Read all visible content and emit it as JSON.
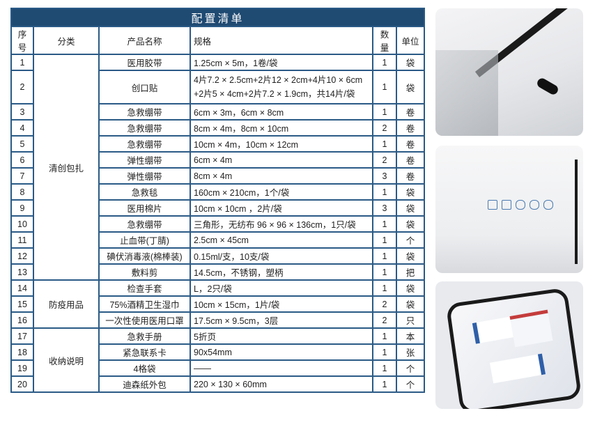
{
  "title": "配置清单",
  "headers": [
    "序号",
    "分类",
    "产品名称",
    "规格",
    "数量",
    "单位"
  ],
  "categories": [
    {
      "label": "清创包扎",
      "rows": 13
    },
    {
      "label": "防疫用品",
      "rows": 3
    },
    {
      "label": "收纳说明",
      "rows": 4
    }
  ],
  "rows": [
    {
      "no": "1",
      "name": "医用胶带",
      "spec": "1.25cm × 5m，1卷/袋",
      "qty": "1",
      "unit": "袋"
    },
    {
      "no": "2",
      "name": "创口贴",
      "spec": "4片7.2 × 2.5cm+2片12 × 2cm+4片10 × 6cm +2片5 × 4cm+2片7.2 × 1.9cm，共14片/袋",
      "qty": "1",
      "unit": "袋"
    },
    {
      "no": "3",
      "name": "急救绷带",
      "spec": "6cm × 3m，6cm × 8cm",
      "qty": "1",
      "unit": "卷"
    },
    {
      "no": "4",
      "name": "急救绷带",
      "spec": "8cm × 4m，8cm × 10cm",
      "qty": "2",
      "unit": "卷"
    },
    {
      "no": "5",
      "name": "急救绷带",
      "spec": "10cm × 4m，10cm × 12cm",
      "qty": "1",
      "unit": "卷"
    },
    {
      "no": "6",
      "name": "弹性绷带",
      "spec": "6cm × 4m",
      "qty": "2",
      "unit": "卷"
    },
    {
      "no": "7",
      "name": "弹性绷带",
      "spec": "8cm × 4m",
      "qty": "3",
      "unit": "卷"
    },
    {
      "no": "8",
      "name": "急救毯",
      "spec": "160cm × 210cm，1个/袋",
      "qty": "1",
      "unit": "袋"
    },
    {
      "no": "9",
      "name": "医用棉片",
      "spec": "10cm × 10cm ，2片/袋",
      "qty": "3",
      "unit": "袋"
    },
    {
      "no": "10",
      "name": "急救绷带",
      "spec": "三角形，无纺布  96 × 96 × 136cm，1只/袋",
      "qty": "1",
      "unit": "袋"
    },
    {
      "no": "11",
      "name": "止血带(丁腈)",
      "spec": "2.5cm × 45cm",
      "qty": "1",
      "unit": "个"
    },
    {
      "no": "12",
      "name": "碘伏消毒液(棉棒装)",
      "spec": "0.15ml/支，10支/袋",
      "qty": "1",
      "unit": "袋"
    },
    {
      "no": "13",
      "name": "敷料剪",
      "spec": "14.5cm，不锈钢，塑柄",
      "qty": "1",
      "unit": "把"
    },
    {
      "no": "14",
      "name": "检查手套",
      "spec": "L，2只/袋",
      "qty": "1",
      "unit": "袋"
    },
    {
      "no": "15",
      "name": "75%酒精卫生湿巾",
      "spec": "10cm × 15cm，1片/袋",
      "qty": "2",
      "unit": "袋"
    },
    {
      "no": "16",
      "name": "一次性使用医用口罩",
      "spec": "17.5cm × 9.5cm，3层",
      "qty": "2",
      "unit": "只"
    },
    {
      "no": "17",
      "name": "急救手册",
      "spec": "5折页",
      "qty": "1",
      "unit": "本"
    },
    {
      "no": "18",
      "name": "紧急联系卡",
      "spec": "90x54mm",
      "qty": "1",
      "unit": "张"
    },
    {
      "no": "19",
      "name": "4格袋",
      "spec": "——",
      "qty": "1",
      "unit": "个"
    },
    {
      "no": "20",
      "name": "迪森纸外包",
      "spec": " 220 × 130 × 60mm",
      "qty": "1",
      "unit": "个"
    }
  ],
  "colors": {
    "title_bg": "#1f4a72",
    "border": "#2a5a86"
  }
}
